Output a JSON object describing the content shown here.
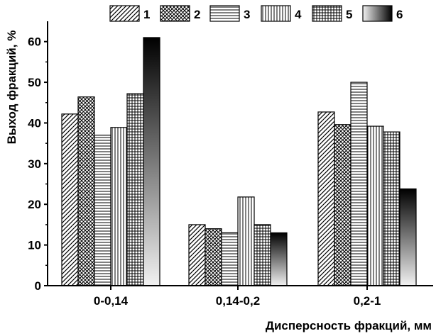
{
  "chart_data": {
    "type": "bar",
    "title": "",
    "xlabel": "Дисперсность фракций, мм",
    "ylabel": "Выход фракций, %",
    "ylim": [
      0,
      65
    ],
    "yticks": [
      0,
      10,
      20,
      30,
      40,
      50,
      60
    ],
    "categories": [
      "0-0,14",
      "0,14-0,2",
      "0,2-1"
    ],
    "legend_position": "top",
    "series": [
      {
        "name": "1",
        "pattern": "diagonal-hatch",
        "values": [
          42.2,
          15.0,
          42.7
        ]
      },
      {
        "name": "2",
        "pattern": "crosshatch",
        "values": [
          46.4,
          14.0,
          39.6
        ]
      },
      {
        "name": "3",
        "pattern": "horizontal-lines",
        "values": [
          37.0,
          13.0,
          50.0
        ]
      },
      {
        "name": "4",
        "pattern": "vertical-lines",
        "values": [
          38.9,
          21.8,
          39.2
        ]
      },
      {
        "name": "5",
        "pattern": "grid",
        "values": [
          47.2,
          15.0,
          37.8
        ]
      },
      {
        "name": "6",
        "pattern": "dark-gradient",
        "values": [
          61.0,
          13.0,
          23.8
        ]
      }
    ]
  }
}
